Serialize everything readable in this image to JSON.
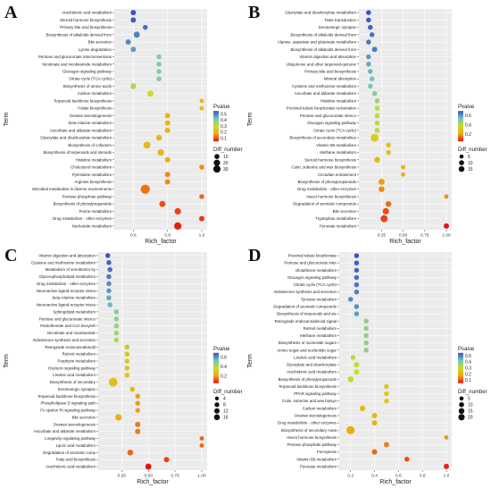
{
  "chart_data": [
    {
      "panel": "A",
      "type": "scatter",
      "xlabel": "Rich_factor",
      "ylabel": "Term",
      "x_ticks": [
        "0.6",
        "0.8",
        "1.0"
      ],
      "xlim": [
        0.52,
        1.0
      ],
      "legend_p_title": "Pvalue",
      "legend_p_ticks": [
        "0.5",
        "0.4",
        "0.3",
        "0.2",
        "0.1"
      ],
      "plim": [
        0.05,
        0.55
      ],
      "legend_n_title": "Diff_number",
      "legend_n_values": [
        10,
        20,
        30
      ],
      "categories": [
        "Arachidonic acid metabolism",
        "Steroid hormone biosynthesis",
        "Primary bile acid biosynthesis",
        "Biosynthesis of alkaloids derived from",
        "Bile secretion",
        "Lysine degradation",
        "Pentose and glucuronate interconversions",
        "Nicotinate and nicotinamide metabolism",
        "Glucagon signaling pathway",
        "Citrate cycle (TCA cycle)",
        "Biosynthesis of amino acids",
        "Carbon metabolism",
        "Terpenoid backbone biosynthesis",
        "Folate biosynthesis",
        "Ovarian steroidogenesis",
        "beta-Alanine metabolism",
        "Ascorbate and aldarate metabolism",
        "Glyoxylate and dicarboxylate metabolism",
        "Biosynthesis of cofactors",
        "Biosynthesis of terpenoids and steroids",
        "Histidine metabolism",
        "Cholesterol metabolism",
        "Pyrimidine metabolism",
        "Arginine biosynthesis",
        "Microbial metabolism in diverse environments",
        "Pentose phosphate pathway",
        "Biosynthesis of phenylpropanoids",
        "Purine metabolism",
        "Drug metabolism - other enzymes",
        "Nucleotide metabolism"
      ],
      "points": [
        {
          "x": 0.6,
          "p": 0.55,
          "n": 4
        },
        {
          "x": 0.6,
          "p": 0.54,
          "n": 4
        },
        {
          "x": 0.67,
          "p": 0.52,
          "n": 3
        },
        {
          "x": 0.62,
          "p": 0.5,
          "n": 6
        },
        {
          "x": 0.57,
          "p": 0.49,
          "n": 4
        },
        {
          "x": 0.6,
          "p": 0.47,
          "n": 4
        },
        {
          "x": 0.75,
          "p": 0.4,
          "n": 3
        },
        {
          "x": 0.75,
          "p": 0.4,
          "n": 3
        },
        {
          "x": 0.75,
          "p": 0.4,
          "n": 3
        },
        {
          "x": 0.75,
          "p": 0.4,
          "n": 3
        },
        {
          "x": 0.6,
          "p": 0.34,
          "n": 5
        },
        {
          "x": 0.7,
          "p": 0.3,
          "n": 6
        },
        {
          "x": 1.0,
          "p": 0.22,
          "n": 2
        },
        {
          "x": 1.0,
          "p": 0.22,
          "n": 2
        },
        {
          "x": 0.8,
          "p": 0.2,
          "n": 4
        },
        {
          "x": 0.8,
          "p": 0.2,
          "n": 4
        },
        {
          "x": 0.8,
          "p": 0.2,
          "n": 4
        },
        {
          "x": 0.75,
          "p": 0.2,
          "n": 5
        },
        {
          "x": 0.68,
          "p": 0.22,
          "n": 9
        },
        {
          "x": 0.76,
          "p": 0.2,
          "n": 7
        },
        {
          "x": 0.8,
          "p": 0.18,
          "n": 4
        },
        {
          "x": 1.0,
          "p": 0.15,
          "n": 3
        },
        {
          "x": 0.8,
          "p": 0.15,
          "n": 4
        },
        {
          "x": 0.8,
          "p": 0.15,
          "n": 4
        },
        {
          "x": 0.67,
          "p": 0.13,
          "n": 18
        },
        {
          "x": 1.0,
          "p": 0.12,
          "n": 3
        },
        {
          "x": 0.77,
          "p": 0.1,
          "n": 6
        },
        {
          "x": 0.86,
          "p": 0.09,
          "n": 7
        },
        {
          "x": 1.0,
          "p": 0.08,
          "n": 4
        },
        {
          "x": 0.86,
          "p": 0.06,
          "n": 10
        }
      ]
    },
    {
      "panel": "B",
      "type": "scatter",
      "xlabel": "Rich_factor",
      "ylabel": "Term",
      "x_ticks": [
        "0.25",
        "0.50",
        "0.75",
        "1.00"
      ],
      "xlim": [
        0.05,
        1.0
      ],
      "legend_p_title": "Pvalue",
      "legend_p_ticks": [
        "0.6",
        "0.4",
        "0.2"
      ],
      "plim": [
        0.05,
        0.7
      ],
      "legend_n_title": "Diff_number",
      "legend_n_values": [
        5,
        10,
        15
      ],
      "categories": [
        "Glyoxylate and dicarboxylate metabolism",
        "Taste transduction",
        "Serotonergic synapse",
        "Biosynthesis of alkaloids derived from",
        "Alanine, aspartate and glutamate metabolism",
        "Biosynthesis of alkaloids derived from",
        "Vitamin digestion and absorption",
        "Ubiquinone and other terpenoid-quinone",
        "Primary bile acid biosynthesis",
        "Mineral absorption",
        "Cysteine and methionine metabolism",
        "Ascorbate and aldarate metabolism",
        "Histidine metabolism",
        "Proximal tubule bicarbonate reclamation",
        "Pentose and glucuronate interco",
        "Glucagon signaling pathway",
        "Citrate cycle (TCA cycle)",
        "Biosynthesis of secondary metabolites",
        "Vitamin B6 metabolism",
        "Methane metabolism",
        "Steroid hormone biosynthesis",
        "Cutin, suberine and wax biosynthesis",
        "Circadian entrainment",
        "Biosynthesis of phenylpropanoids",
        "Drug metabolism - other enzymes",
        "Insect hormone biosynthesis",
        "Degradation of aromatic compounds",
        "Bile secretion",
        "Tryptophan metabolism",
        "Pyruvate metabolism"
      ],
      "points": [
        {
          "x": 0.1,
          "p": 0.7,
          "n": 3
        },
        {
          "x": 0.1,
          "p": 0.69,
          "n": 3
        },
        {
          "x": 0.12,
          "p": 0.68,
          "n": 3
        },
        {
          "x": 0.14,
          "p": 0.66,
          "n": 3
        },
        {
          "x": 0.1,
          "p": 0.65,
          "n": 3
        },
        {
          "x": 0.17,
          "p": 0.64,
          "n": 4
        },
        {
          "x": 0.1,
          "p": 0.6,
          "n": 3
        },
        {
          "x": 0.1,
          "p": 0.58,
          "n": 3
        },
        {
          "x": 0.12,
          "p": 0.56,
          "n": 3
        },
        {
          "x": 0.14,
          "p": 0.54,
          "n": 3
        },
        {
          "x": 0.12,
          "p": 0.52,
          "n": 3
        },
        {
          "x": 0.17,
          "p": 0.5,
          "n": 3
        },
        {
          "x": 0.2,
          "p": 0.45,
          "n": 3
        },
        {
          "x": 0.2,
          "p": 0.4,
          "n": 3
        },
        {
          "x": 0.2,
          "p": 0.4,
          "n": 3
        },
        {
          "x": 0.2,
          "p": 0.4,
          "n": 3
        },
        {
          "x": 0.2,
          "p": 0.4,
          "n": 3
        },
        {
          "x": 0.17,
          "p": 0.32,
          "n": 12
        },
        {
          "x": 0.33,
          "p": 0.28,
          "n": 3
        },
        {
          "x": 0.33,
          "p": 0.28,
          "n": 3
        },
        {
          "x": 0.2,
          "p": 0.26,
          "n": 5
        },
        {
          "x": 0.5,
          "p": 0.22,
          "n": 2
        },
        {
          "x": 0.5,
          "p": 0.22,
          "n": 2
        },
        {
          "x": 0.25,
          "p": 0.2,
          "n": 6
        },
        {
          "x": 0.25,
          "p": 0.18,
          "n": 5
        },
        {
          "x": 1.0,
          "p": 0.18,
          "n": 2
        },
        {
          "x": 0.33,
          "p": 0.15,
          "n": 5
        },
        {
          "x": 0.3,
          "p": 0.12,
          "n": 7
        },
        {
          "x": 0.28,
          "p": 0.1,
          "n": 9
        },
        {
          "x": 1.0,
          "p": 0.05,
          "n": 4
        }
      ]
    },
    {
      "panel": "C",
      "type": "scatter",
      "xlabel": "Rich_factor",
      "ylabel": "Term",
      "x_ticks": [
        "0.25",
        "0.50",
        "0.75",
        "1.00"
      ],
      "xlim": [
        0.08,
        1.0
      ],
      "legend_p_title": "Pvalue",
      "legend_p_ticks": [
        "0.6",
        "0.4",
        "0.2"
      ],
      "plim": [
        0.05,
        0.7
      ],
      "legend_n_title": "Diff_number",
      "legend_n_values": [
        4,
        8,
        12,
        16
      ],
      "categories": [
        "Vitamin digestion and absorption",
        "Cysteine and methionine metabolism",
        "Metabolism of xenobiotics by",
        "Glycerophospholipid metabolism",
        "Drug metabolism - other enzymes",
        "Neuroactive ligand-receptor intera",
        "beta-Alanine metabolism",
        "Neuroactive ligand-receptor intera",
        "Sphingolipid metabolism",
        "Pentose and glucuronate interco",
        "Pantothenate and CoA biosynth",
        "Nicotinate and nicotinamide",
        "Aldosterone synthesis and secretion",
        "Retrograde endocannabinoid",
        "Retinol metabolism",
        "Porphyrin metabolism",
        "Oxytocin signaling pathway",
        "Linoleic acid metabolism",
        "Biosynthesis of secondary",
        "Serotonergic synapse",
        "Terpenoid backbone biosynthesis",
        "Phospholipase D signaling path",
        "Fc epsilon RI signaling pathway",
        "Bile secretion",
        "Ovarian steroidogenesis",
        "Ascorbate and aldarate metabolism",
        "Longevity regulating pathway",
        "Lipoic acid metabolism",
        "Degradation of aromatic comp",
        "Fatty acid biosynthesis",
        "Arachidonic acid metabolism"
      ],
      "points": [
        {
          "x": 0.12,
          "p": 0.7,
          "n": 3
        },
        {
          "x": 0.13,
          "p": 0.68,
          "n": 3
        },
        {
          "x": 0.14,
          "p": 0.66,
          "n": 3
        },
        {
          "x": 0.13,
          "p": 0.64,
          "n": 3
        },
        {
          "x": 0.13,
          "p": 0.62,
          "n": 3
        },
        {
          "x": 0.13,
          "p": 0.6,
          "n": 3
        },
        {
          "x": 0.13,
          "p": 0.58,
          "n": 3
        },
        {
          "x": 0.14,
          "p": 0.56,
          "n": 3
        },
        {
          "x": 0.2,
          "p": 0.5,
          "n": 3
        },
        {
          "x": 0.2,
          "p": 0.48,
          "n": 3
        },
        {
          "x": 0.2,
          "p": 0.46,
          "n": 3
        },
        {
          "x": 0.2,
          "p": 0.44,
          "n": 3
        },
        {
          "x": 0.2,
          "p": 0.42,
          "n": 3
        },
        {
          "x": 0.3,
          "p": 0.3,
          "n": 3
        },
        {
          "x": 0.3,
          "p": 0.3,
          "n": 3
        },
        {
          "x": 0.3,
          "p": 0.3,
          "n": 3
        },
        {
          "x": 0.3,
          "p": 0.3,
          "n": 3
        },
        {
          "x": 0.3,
          "p": 0.28,
          "n": 3
        },
        {
          "x": 0.17,
          "p": 0.28,
          "n": 16
        },
        {
          "x": 0.35,
          "p": 0.24,
          "n": 3
        },
        {
          "x": 0.4,
          "p": 0.2,
          "n": 3
        },
        {
          "x": 0.4,
          "p": 0.2,
          "n": 3
        },
        {
          "x": 0.4,
          "p": 0.2,
          "n": 3
        },
        {
          "x": 0.22,
          "p": 0.22,
          "n": 7
        },
        {
          "x": 0.4,
          "p": 0.16,
          "n": 4
        },
        {
          "x": 0.4,
          "p": 0.16,
          "n": 4
        },
        {
          "x": 1.0,
          "p": 0.14,
          "n": 2
        },
        {
          "x": 1.0,
          "p": 0.14,
          "n": 2
        },
        {
          "x": 0.33,
          "p": 0.14,
          "n": 5
        },
        {
          "x": 0.67,
          "p": 0.1,
          "n": 4
        },
        {
          "x": 0.5,
          "p": 0.05,
          "n": 6
        }
      ]
    },
    {
      "panel": "D",
      "type": "scatter",
      "xlabel": "Rich_factor",
      "ylabel": "Term",
      "x_ticks": [
        "0.2",
        "0.4",
        "0.6",
        "0.8",
        "1.0"
      ],
      "xlim": [
        0.15,
        1.0
      ],
      "legend_p_title": "Pvalue",
      "legend_p_ticks": [
        "0.5",
        "0.4",
        "0.3",
        "0.2",
        "0.1"
      ],
      "plim": [
        0.05,
        0.55
      ],
      "legend_n_title": "Diff_number",
      "legend_n_values": [
        5,
        10,
        15,
        20
      ],
      "categories": [
        "Proximal tubule bicarbonate",
        "Pentose and glucuronate inter",
        "Glutathione metabolism",
        "Glucagon signaling pathway",
        "Citrate cycle (TCA cycle)",
        "Aldosterone synthesis and secretion",
        "Tyrosine metabolism",
        "Degradation of aromatic compounds",
        "Biosynthesis of terpenoids and ste",
        "Retrograde endocannabinoid signal",
        "Retinol metabolism",
        "Methane metabolism",
        "Biosynthesis of nucleotide sugars",
        "Amino sugar and nucleotide sugar",
        "Linoleic acid metabolism",
        "Glyoxylate and dicarboxylate",
        "Arachidonic acid metabolism",
        "Biosynthesis of phenylpropanoids",
        "Terpenoid backbone biosynthesis",
        "PPAR signaling pathway",
        "Cutin, suberine and wax biosyn",
        "Carbon metabolism",
        "Ovarian steroidogenesis",
        "Drug metabolism - other enzymes",
        "Biosynthesis of secondary meta",
        "Insect hormone biosynthesis",
        "Pentose phosphate pathway",
        "Ferroptosis",
        "Vitamin B6 metabolism",
        "Pyruvate metabolism"
      ],
      "points": [
        {
          "x": 0.25,
          "p": 0.55,
          "n": 3
        },
        {
          "x": 0.25,
          "p": 0.54,
          "n": 3
        },
        {
          "x": 0.25,
          "p": 0.53,
          "n": 3
        },
        {
          "x": 0.25,
          "p": 0.52,
          "n": 3
        },
        {
          "x": 0.25,
          "p": 0.51,
          "n": 3
        },
        {
          "x": 0.25,
          "p": 0.5,
          "n": 3
        },
        {
          "x": 0.2,
          "p": 0.49,
          "n": 3
        },
        {
          "x": 0.25,
          "p": 0.48,
          "n": 3
        },
        {
          "x": 0.25,
          "p": 0.47,
          "n": 3
        },
        {
          "x": 0.33,
          "p": 0.38,
          "n": 3
        },
        {
          "x": 0.33,
          "p": 0.38,
          "n": 3
        },
        {
          "x": 0.33,
          "p": 0.38,
          "n": 3
        },
        {
          "x": 0.33,
          "p": 0.38,
          "n": 3
        },
        {
          "x": 0.33,
          "p": 0.38,
          "n": 3
        },
        {
          "x": 0.22,
          "p": 0.32,
          "n": 3
        },
        {
          "x": 0.25,
          "p": 0.3,
          "n": 4
        },
        {
          "x": 0.25,
          "p": 0.3,
          "n": 4
        },
        {
          "x": 0.2,
          "p": 0.28,
          "n": 5
        },
        {
          "x": 0.5,
          "p": 0.25,
          "n": 3
        },
        {
          "x": 0.5,
          "p": 0.25,
          "n": 3
        },
        {
          "x": 0.5,
          "p": 0.25,
          "n": 3
        },
        {
          "x": 0.3,
          "p": 0.22,
          "n": 5
        },
        {
          "x": 0.4,
          "p": 0.2,
          "n": 4
        },
        {
          "x": 0.4,
          "p": 0.2,
          "n": 4
        },
        {
          "x": 0.2,
          "p": 0.18,
          "n": 14
        },
        {
          "x": 1.0,
          "p": 0.16,
          "n": 2
        },
        {
          "x": 0.5,
          "p": 0.14,
          "n": 4
        },
        {
          "x": 0.4,
          "p": 0.12,
          "n": 4
        },
        {
          "x": 0.67,
          "p": 0.1,
          "n": 3
        },
        {
          "x": 1.0,
          "p": 0.06,
          "n": 4
        }
      ]
    }
  ]
}
